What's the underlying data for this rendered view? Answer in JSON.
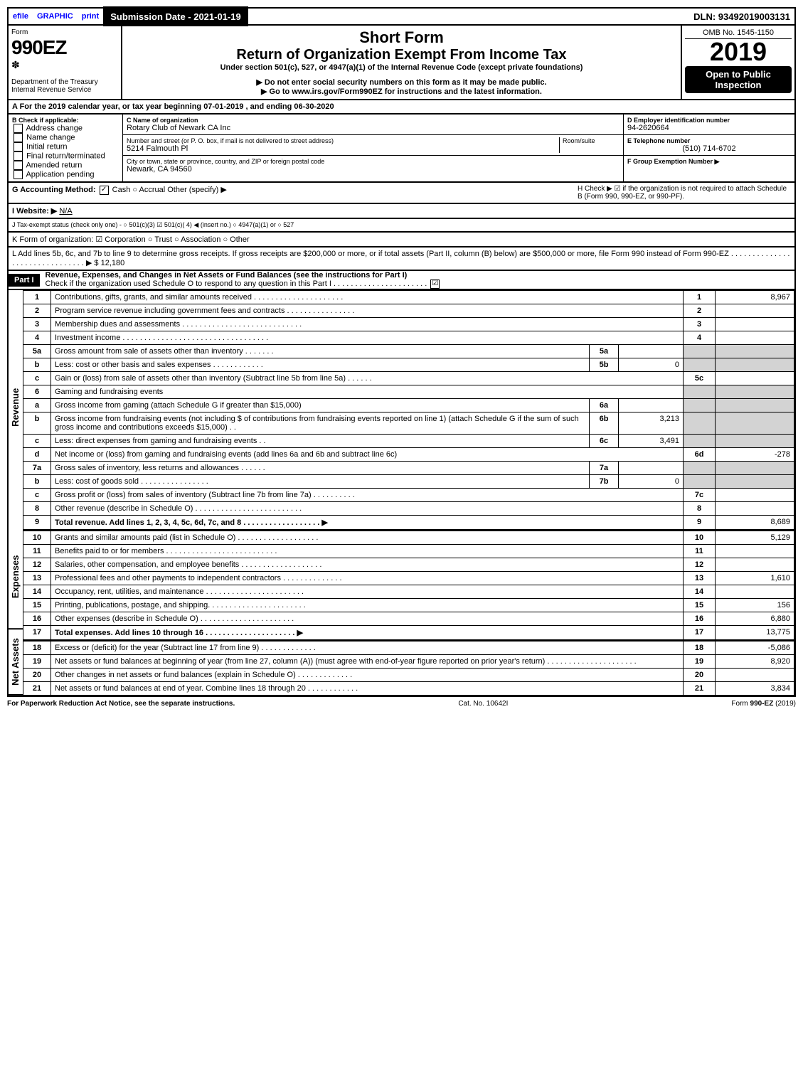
{
  "top": {
    "efile": "efile",
    "graphic": "GRAPHIC",
    "print": "print",
    "sub_date": "Submission Date - 2021-01-19",
    "dln": "DLN: 93492019003131"
  },
  "header": {
    "form": "Form",
    "form_no": "990EZ",
    "dept": "Department of the Treasury",
    "irs": "Internal Revenue Service",
    "title": "Short Form",
    "subtitle": "Return of Organization Exempt From Income Tax",
    "under": "Under section 501(c), 527, or 4947(a)(1) of the Internal Revenue Code (except private foundations)",
    "warn": "▶ Do not enter social security numbers on this form as it may be made public.",
    "goto": "▶ Go to www.irs.gov/Form990EZ for instructions and the latest information.",
    "omb": "OMB No. 1545-1150",
    "year": "2019",
    "open": "Open to Public Inspection"
  },
  "period": {
    "label": "A For the 2019 calendar year, or tax year beginning 07-01-2019 , and ending 06-30-2020"
  },
  "boxB": {
    "title": "B Check if applicable:",
    "items": [
      "Address change",
      "Name change",
      "Initial return",
      "Final return/terminated",
      "Amended return",
      "Application pending"
    ]
  },
  "boxC": {
    "name_lbl": "C Name of organization",
    "name": "Rotary Club of Newark CA Inc",
    "addr_lbl": "Number and street (or P. O. box, if mail is not delivered to street address)",
    "addr": "5214 Falmouth Pl",
    "room_lbl": "Room/suite",
    "city_lbl": "City or town, state or province, country, and ZIP or foreign postal code",
    "city": "Newark, CA  94560"
  },
  "boxD": {
    "lbl": "D Employer identification number",
    "val": "94-2620664"
  },
  "boxE": {
    "lbl": "E Telephone number",
    "val": "(510) 714-6702"
  },
  "boxF": {
    "lbl": "F Group Exemption Number  ▶"
  },
  "boxG": {
    "lbl": "G Accounting Method:",
    "opts": "Cash   ○ Accrual   Other (specify) ▶"
  },
  "boxH": {
    "txt": "H  Check ▶  ☑  if the organization is not required to attach Schedule B (Form 990, 990-EZ, or 990-PF)."
  },
  "boxI": {
    "lbl": "I Website: ▶",
    "val": "N/A"
  },
  "boxJ": {
    "txt": "J Tax-exempt status (check only one) -  ○ 501(c)(3)  ☑ 501(c)( 4) ◀ (insert no.)  ○ 4947(a)(1) or  ○ 527"
  },
  "boxK": {
    "txt": "K Form of organization:   ☑ Corporation   ○ Trust   ○ Association   ○ Other"
  },
  "boxL": {
    "txt": "L Add lines 5b, 6c, and 7b to line 9 to determine gross receipts. If gross receipts are $200,000 or more, or if total assets (Part II, column (B) below) are $500,000 or more, file Form 990 instead of Form 990-EZ . . . . . . . . . . . . . . . . . . . . . . . . . . . . . . . ▶ $ 12,180"
  },
  "part1": {
    "hdr": "Part I",
    "title": "Revenue, Expenses, and Changes in Net Assets or Fund Balances (see the instructions for Part I)",
    "check": "Check if the organization used Schedule O to respond to any question in this Part I . . . . . . . . . . . . . . . . . . . . . .",
    "checked": "☑"
  },
  "sections": {
    "rev": "Revenue",
    "exp": "Expenses",
    "net": "Net Assets"
  },
  "lines": [
    {
      "n": "1",
      "d": "Contributions, gifts, grants, and similar amounts received . . . . . . . . . . . . . . . . . . . . .",
      "r": "1",
      "a": "8,967"
    },
    {
      "n": "2",
      "d": "Program service revenue including government fees and contracts . . . . . . . . . . . . . . . .",
      "r": "2",
      "a": ""
    },
    {
      "n": "3",
      "d": "Membership dues and assessments . . . . . . . . . . . . . . . . . . . . . . . . . . . .",
      "r": "3",
      "a": ""
    },
    {
      "n": "4",
      "d": "Investment income . . . . . . . . . . . . . . . . . . . . . . . . . . . . . . . . . .",
      "r": "4",
      "a": ""
    },
    {
      "n": "5a",
      "d": "Gross amount from sale of assets other than inventory . . . . . . .",
      "sub": "5a",
      "sv": ""
    },
    {
      "n": "b",
      "d": "Less: cost or other basis and sales expenses . . . . . . . . . . . .",
      "sub": "5b",
      "sv": "0"
    },
    {
      "n": "c",
      "d": "Gain or (loss) from sale of assets other than inventory (Subtract line 5b from line 5a) . . . . . .",
      "r": "5c",
      "a": ""
    },
    {
      "n": "6",
      "d": "Gaming and fundraising events"
    },
    {
      "n": "a",
      "d": "Gross income from gaming (attach Schedule G if greater than $15,000)",
      "sub": "6a",
      "sv": ""
    },
    {
      "n": "b",
      "d": "Gross income from fundraising events (not including $                      of contributions from fundraising events reported on line 1) (attach Schedule G if the sum of such gross income and contributions exceeds $15,000)   . .",
      "sub": "6b",
      "sv": "3,213"
    },
    {
      "n": "c",
      "d": "Less: direct expenses from gaming and fundraising events        . .",
      "sub": "6c",
      "sv": "3,491"
    },
    {
      "n": "d",
      "d": "Net income or (loss) from gaming and fundraising events (add lines 6a and 6b and subtract line 6c)",
      "r": "6d",
      "a": "-278"
    },
    {
      "n": "7a",
      "d": "Gross sales of inventory, less returns and allowances . . . . . .",
      "sub": "7a",
      "sv": ""
    },
    {
      "n": "b",
      "d": "Less: cost of goods sold            . . . . . . . . . . . . . . . .",
      "sub": "7b",
      "sv": "0"
    },
    {
      "n": "c",
      "d": "Gross profit or (loss) from sales of inventory (Subtract line 7b from line 7a) . . . . . . . . . .",
      "r": "7c",
      "a": ""
    },
    {
      "n": "8",
      "d": "Other revenue (describe in Schedule O) . . . . . . . . . . . . . . . . . . . . . . . . .",
      "r": "8",
      "a": ""
    },
    {
      "n": "9",
      "d": "Total revenue. Add lines 1, 2, 3, 4, 5c, 6d, 7c, and 8  . . . . . . . . . . . . . . . . . .   ▶",
      "r": "9",
      "a": "8,689",
      "bold": true
    }
  ],
  "exp_lines": [
    {
      "n": "10",
      "d": "Grants and similar amounts paid (list in Schedule O) . . . . . . . . . . . . . . . . . . .",
      "r": "10",
      "a": "5,129"
    },
    {
      "n": "11",
      "d": "Benefits paid to or for members       . . . . . . . . . . . . . . . . . . . . . . . . . .",
      "r": "11",
      "a": ""
    },
    {
      "n": "12",
      "d": "Salaries, other compensation, and employee benefits . . . . . . . . . . . . . . . . . . .",
      "r": "12",
      "a": ""
    },
    {
      "n": "13",
      "d": "Professional fees and other payments to independent contractors . . . . . . . . . . . . . .",
      "r": "13",
      "a": "1,610"
    },
    {
      "n": "14",
      "d": "Occupancy, rent, utilities, and maintenance . . . . . . . . . . . . . . . . . . . . . . .",
      "r": "14",
      "a": ""
    },
    {
      "n": "15",
      "d": "Printing, publications, postage, and shipping. . . . . . . . . . . . . . . . . . . . . . .",
      "r": "15",
      "a": "156"
    },
    {
      "n": "16",
      "d": "Other expenses (describe in Schedule O)       . . . . . . . . . . . . . . . . . . . . . .",
      "r": "16",
      "a": "6,880"
    },
    {
      "n": "17",
      "d": "Total expenses. Add lines 10 through 16      . . . . . . . . . . . . . . . . . . . . .   ▶",
      "r": "17",
      "a": "13,775",
      "bold": true
    }
  ],
  "net_lines": [
    {
      "n": "18",
      "d": "Excess or (deficit) for the year (Subtract line 17 from line 9)        . . . . . . . . . . . . .",
      "r": "18",
      "a": "-5,086"
    },
    {
      "n": "19",
      "d": "Net assets or fund balances at beginning of year (from line 27, column (A)) (must agree with end-of-year figure reported on prior year's return) . . . . . . . . . . . . . . . . . . . . .",
      "r": "19",
      "a": "8,920"
    },
    {
      "n": "20",
      "d": "Other changes in net assets or fund balances (explain in Schedule O) . . . . . . . . . . . . .",
      "r": "20",
      "a": ""
    },
    {
      "n": "21",
      "d": "Net assets or fund balances at end of year. Combine lines 18 through 20 . . . . . . . . . . . .",
      "r": "21",
      "a": "3,834"
    }
  ],
  "footer": {
    "left": "For Paperwork Reduction Act Notice, see the separate instructions.",
    "mid": "Cat. No. 10642I",
    "right": "Form 990-EZ (2019)"
  }
}
